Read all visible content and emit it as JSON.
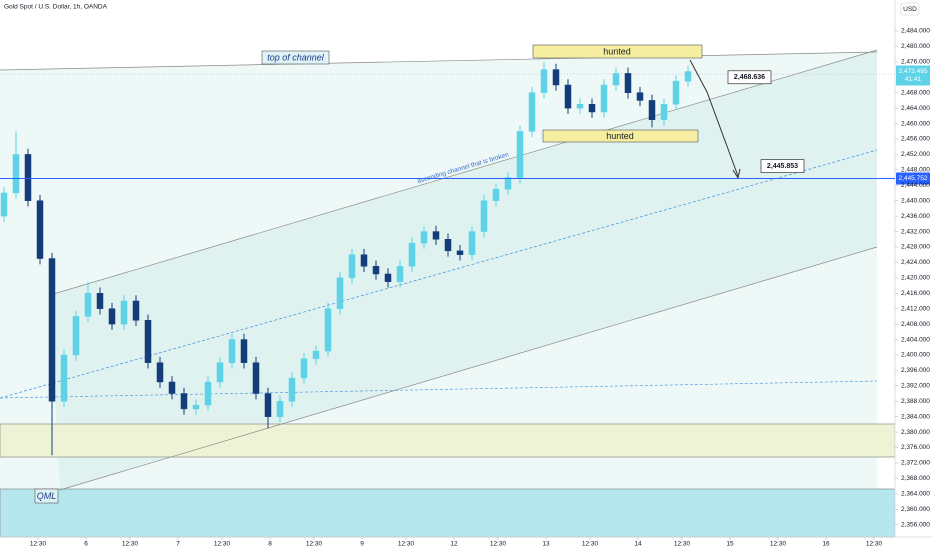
{
  "chart_data": {
    "type": "candlestick",
    "title": "Gold Spot / U.S. Dollar, 1h, OANDA",
    "y_axis_label": "USD",
    "up_color": "#5ed3e8",
    "down_color": "#143d7a",
    "x": [
      1,
      4,
      7,
      10,
      13,
      16,
      19,
      22,
      25,
      28,
      31,
      34,
      37,
      40,
      43,
      46,
      49,
      52,
      55,
      58,
      61,
      64,
      67,
      70,
      73,
      76,
      79,
      82,
      85,
      88,
      91,
      94,
      97,
      100,
      103,
      106,
      109,
      112,
      115,
      118,
      121,
      124,
      127,
      130,
      133,
      136,
      139,
      142,
      145,
      148,
      151,
      154,
      157,
      160,
      163,
      166,
      169,
      172
    ],
    "open": [
      2436,
      2442,
      2452,
      2440,
      2425,
      2388,
      2400,
      2410,
      2416,
      2412,
      2408,
      2414,
      2409,
      2398,
      2393,
      2390,
      2386,
      2387,
      2393,
      2398,
      2404,
      2398,
      2390,
      2384,
      2388,
      2394,
      2399,
      2401,
      2412,
      2420,
      2426,
      2423,
      2421,
      2419,
      2423,
      2429,
      2432,
      2430,
      2427,
      2426,
      2432,
      2440,
      2443,
      2446,
      2458,
      2468,
      2474,
      2470,
      2464,
      2465,
      2463,
      2470,
      2473,
      2468,
      2466,
      2461,
      2465,
      2471
    ],
    "high": [
      2443.5,
      2458,
      2453.5,
      2441.5,
      2426.5,
      2401.5,
      2411.5,
      2419,
      2417.5,
      2413.5,
      2415.5,
      2415.5,
      2410.5,
      2399.5,
      2394.5,
      2391.5,
      2388.5,
      2394.5,
      2399.5,
      2405.5,
      2405.5,
      2399.5,
      2391.5,
      2389.5,
      2395.5,
      2400.5,
      2402.5,
      2413.5,
      2421.5,
      2427.5,
      2427.5,
      2424.5,
      2422.5,
      2424.5,
      2430.5,
      2433.5,
      2433.5,
      2431.5,
      2428.5,
      2433.5,
      2441.5,
      2444.5,
      2447.5,
      2459.5,
      2469.5,
      2476,
      2475.5,
      2471.5,
      2466.5,
      2466.5,
      2471.5,
      2474.5,
      2474.5,
      2469.5,
      2467.5,
      2466.5,
      2472.5,
      2475
    ],
    "low": [
      2434.5,
      2440.5,
      2438.5,
      2423.5,
      2374,
      2386.5,
      2398.5,
      2408.5,
      2410.5,
      2406.5,
      2406.5,
      2407.5,
      2396.5,
      2391.5,
      2388.5,
      2384.5,
      2384.5,
      2385.5,
      2391.5,
      2396.5,
      2396.5,
      2388.5,
      2381,
      2382.5,
      2386.5,
      2392.5,
      2397.5,
      2399.5,
      2410.5,
      2418.5,
      2421.5,
      2419.5,
      2417.5,
      2417.5,
      2421.5,
      2427.5,
      2428.5,
      2425.5,
      2424.5,
      2424.5,
      2430.5,
      2438.5,
      2441.5,
      2444.5,
      2456.5,
      2466.5,
      2468.5,
      2462.5,
      2462.5,
      2461.5,
      2461.5,
      2468.5,
      2466.5,
      2464.5,
      2459,
      2459.5,
      2463.5,
      2469.5
    ],
    "close": [
      2442,
      2452,
      2440,
      2425,
      2388,
      2400,
      2410,
      2416,
      2412,
      2408,
      2414,
      2409,
      2398,
      2393,
      2390,
      2386,
      2387,
      2393,
      2398,
      2404,
      2398,
      2390,
      2384,
      2388,
      2394,
      2399,
      2401,
      2412,
      2420,
      2426,
      2423,
      2421,
      2419,
      2423,
      2429,
      2432,
      2430,
      2427,
      2426,
      2432,
      2440,
      2443,
      2446,
      2458,
      2468,
      2474,
      2470,
      2464,
      2465,
      2463,
      2470,
      2473,
      2468,
      2466,
      2461,
      2465,
      2471,
      2473.495
    ],
    "xlim": [
      0,
      223.75
    ],
    "xticks": [
      {
        "value": 9.5,
        "label": "12:30"
      },
      {
        "value": 21.5,
        "label": "6"
      },
      {
        "value": 32.5,
        "label": "12:30"
      },
      {
        "value": 44.5,
        "label": "7"
      },
      {
        "value": 55.5,
        "label": "12:30"
      },
      {
        "value": 67.5,
        "label": "8"
      },
      {
        "value": 78.5,
        "label": "12:30"
      },
      {
        "value": 90.5,
        "label": "9"
      },
      {
        "value": 101.5,
        "label": "12:30"
      },
      {
        "value": 113.5,
        "label": "12"
      },
      {
        "value": 124.5,
        "label": "12:30"
      },
      {
        "value": 136.5,
        "label": "13"
      },
      {
        "value": 147.5,
        "label": "12:30"
      },
      {
        "value": 159.5,
        "label": "14"
      },
      {
        "value": 170.5,
        "label": "12:30"
      },
      {
        "value": 182.5,
        "label": "15"
      },
      {
        "value": 194.5,
        "label": "12:30"
      },
      {
        "value": 206.5,
        "label": "16"
      },
      {
        "value": 218.5,
        "label": "12:30"
      }
    ],
    "ylim": [
      2352.8,
      2492.04
    ],
    "yticks": [
      {
        "value": 2356,
        "label": "2,356.000"
      },
      {
        "value": 2360,
        "label": "2,360.000"
      },
      {
        "value": 2364,
        "label": "2,364.000"
      },
      {
        "value": 2368,
        "label": "2,368.000"
      },
      {
        "value": 2372,
        "label": "2,372.000"
      },
      {
        "value": 2376,
        "label": "2,376.000"
      },
      {
        "value": 2380,
        "label": "2,380.000"
      },
      {
        "value": 2384,
        "label": "2,384.000"
      },
      {
        "value": 2388,
        "label": "2,388.000"
      },
      {
        "value": 2392,
        "label": "2,392.000"
      },
      {
        "value": 2396,
        "label": "2,396.000"
      },
      {
        "value": 2400,
        "label": "2,400.000"
      },
      {
        "value": 2404,
        "label": "2,404.000"
      },
      {
        "value": 2408,
        "label": "2,408.000"
      },
      {
        "value": 2412,
        "label": "2,412.000"
      },
      {
        "value": 2416,
        "label": "2,416.000"
      },
      {
        "value": 2420,
        "label": "2,420.000"
      },
      {
        "value": 2424,
        "label": "2,424.000"
      },
      {
        "value": 2428,
        "label": "2,428.000"
      },
      {
        "value": 2432,
        "label": "2,432.000"
      },
      {
        "value": 2436,
        "label": "2,436.000"
      },
      {
        "value": 2440,
        "label": "2,440.000"
      },
      {
        "value": 2444,
        "label": "2,444.000"
      },
      {
        "value": 2448,
        "label": "2,448.000"
      },
      {
        "value": 2452,
        "label": "2,452.000"
      },
      {
        "value": 2456,
        "label": "2,456.000"
      },
      {
        "value": 2460,
        "label": "2,460.000"
      },
      {
        "value": 2464,
        "label": "2,464.000"
      },
      {
        "value": 2468,
        "label": "2,468.000"
      },
      {
        "value": 2476,
        "label": "2,476.000"
      },
      {
        "value": 2480,
        "label": "2,480.000"
      },
      {
        "value": 2484,
        "label": "2,484.000"
      }
    ],
    "last_price": {
      "value": 2473.495,
      "label": "2,473.495"
    },
    "countdown": "41:41",
    "support_line": {
      "value": 2445.752,
      "label": "2,445.752"
    },
    "annotations": {
      "top_of_channel": "top of channel",
      "hunted_top": "hunted",
      "hunted_bottom": "hunted",
      "channel_note": "ascending channel that is broken",
      "qml": "QML",
      "target_1": {
        "value": 2468.636,
        "label": "2,468.636"
      },
      "target_2": {
        "value": 2445.853,
        "label": "2,445.853"
      }
    }
  }
}
